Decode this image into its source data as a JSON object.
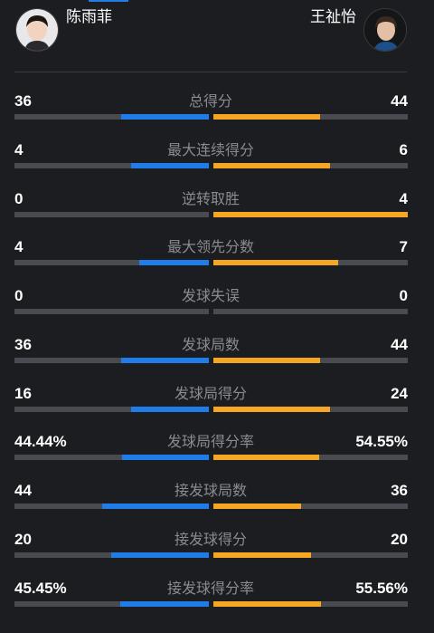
{
  "header": {
    "left_player": {
      "name": "陈雨菲"
    },
    "right_player": {
      "name": "王祉怡"
    }
  },
  "colors": {
    "left_bar": "#1f7ce8",
    "right_bar": "#f5a623",
    "track": "#4a4b50"
  },
  "stats": [
    {
      "label": "总得分",
      "left": "36",
      "right": "44",
      "left_share": 0.45,
      "right_share": 0.55
    },
    {
      "label": "最大连续得分",
      "left": "4",
      "right": "6",
      "left_share": 0.4,
      "right_share": 0.6
    },
    {
      "label": "逆转取胜",
      "left": "0",
      "right": "4",
      "left_share": 0.0,
      "right_share": 1.0
    },
    {
      "label": "最大领先分数",
      "left": "4",
      "right": "7",
      "left_share": 0.36,
      "right_share": 0.64
    },
    {
      "label": "发球失误",
      "left": "0",
      "right": "0",
      "left_share": 0.0,
      "right_share": 0.0
    },
    {
      "label": "发球局数",
      "left": "36",
      "right": "44",
      "left_share": 0.45,
      "right_share": 0.55
    },
    {
      "label": "发球局得分",
      "left": "16",
      "right": "24",
      "left_share": 0.4,
      "right_share": 0.6
    },
    {
      "label": "发球局得分率",
      "left": "44.44%",
      "right": "54.55%",
      "left_share": 0.4444,
      "right_share": 0.5455
    },
    {
      "label": "接发球局数",
      "left": "44",
      "right": "36",
      "left_share": 0.55,
      "right_share": 0.45
    },
    {
      "label": "接发球得分",
      "left": "20",
      "right": "20",
      "left_share": 0.5,
      "right_share": 0.5
    },
    {
      "label": "接发球得分率",
      "left": "45.45%",
      "right": "55.56%",
      "left_share": 0.4545,
      "right_share": 0.5556
    }
  ]
}
